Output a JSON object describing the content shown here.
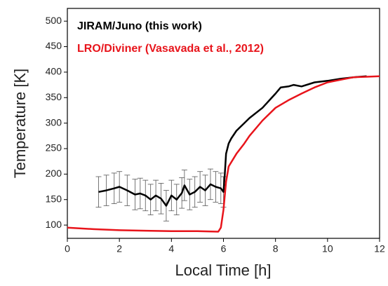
{
  "chart_data": {
    "type": "line",
    "xlabel": "Local Time [h]",
    "ylabel": "Temperature [K]",
    "xlim": [
      0,
      12
    ],
    "xticks": [
      0,
      2,
      4,
      6,
      8,
      10,
      12
    ],
    "ylim": [
      74,
      525
    ],
    "yticks": [
      100,
      150,
      200,
      250,
      300,
      350,
      400,
      450,
      500
    ],
    "grid": false,
    "legend": "upper left",
    "series": [
      {
        "name": "JIRAM/Juno (this work)",
        "color": "#000000",
        "x": [
          1.2,
          1.5,
          1.8,
          2.0,
          2.3,
          2.6,
          2.8,
          3.0,
          3.2,
          3.4,
          3.6,
          3.8,
          4.0,
          4.2,
          4.4,
          4.5,
          4.7,
          4.9,
          5.1,
          5.3,
          5.5,
          5.7,
          5.9,
          6.0,
          6.05,
          6.1,
          6.2,
          6.3,
          6.5,
          6.8,
          7.0,
          7.5,
          8.0,
          8.2,
          8.5,
          8.7,
          9.0,
          9.5,
          10.0,
          10.5,
          11.0,
          11.5
        ],
        "values": [
          165,
          168,
          172,
          175,
          168,
          160,
          162,
          158,
          150,
          158,
          152,
          138,
          158,
          150,
          163,
          178,
          160,
          165,
          175,
          168,
          180,
          175,
          172,
          165,
          200,
          240,
          260,
          270,
          285,
          300,
          310,
          330,
          358,
          370,
          372,
          375,
          372,
          380,
          383,
          387,
          390,
          392
        ],
        "errors": [
          30,
          30,
          30,
          30,
          30,
          30,
          30,
          30,
          30,
          30,
          30,
          30,
          30,
          30,
          30,
          30,
          30,
          30,
          30,
          30,
          30,
          30,
          30,
          30,
          null,
          null,
          null,
          null,
          null,
          null,
          null,
          null,
          null,
          null,
          null,
          null,
          null,
          null,
          null,
          null,
          null,
          null
        ]
      },
      {
        "name": "LRO/Diviner (Vasavada et al., 2012)",
        "color": "#e8141b",
        "x": [
          0,
          1,
          2,
          3,
          4,
          5,
          5.8,
          5.9,
          6.0,
          6.1,
          6.2,
          6.5,
          6.8,
          7.0,
          7.5,
          8.0,
          8.5,
          9.0,
          9.5,
          10.0,
          10.5,
          11.0,
          11.5,
          12.0
        ],
        "values": [
          95,
          92,
          90,
          89,
          88,
          88,
          87,
          95,
          130,
          185,
          215,
          240,
          260,
          275,
          305,
          330,
          345,
          358,
          370,
          380,
          385,
          390,
          391,
          392
        ]
      }
    ]
  }
}
